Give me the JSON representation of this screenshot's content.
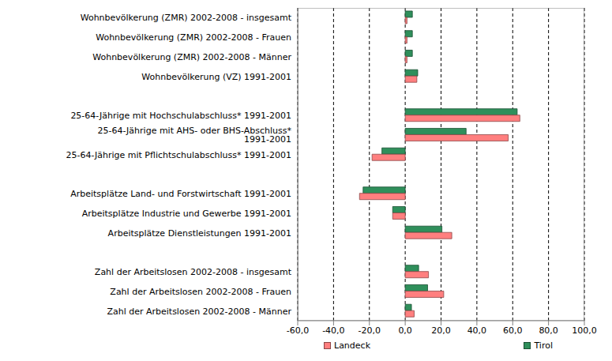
{
  "chart_data": {
    "type": "bar",
    "orientation": "horizontal",
    "categories": [
      "Wohnbevölkerung (ZMR) 2002-2008 - insgesamt",
      "Wohnbevölkerung (ZMR) 2002-2008 - Frauen",
      "Wohnbevölkerung (ZMR) 2002-2008 - Männer",
      "Wohnbevölkerung (VZ) 1991-2001",
      null,
      "25-64-Jährige mit Hochschulabschluss* 1991-2001",
      "25-64-Jährige mit AHS- oder BHS-Abschluss* 1991-2001",
      "25-64-Jährige mit Pflichtschulabschluss* 1991-2001",
      null,
      "Arbeitsplätze Land- und Forstwirtschaft 1991-2001",
      "Arbeitsplätze Industrie und Gewerbe 1991-2001",
      "Arbeitsplätze Dienstleistungen 1991-2001",
      null,
      "Zahl der Arbeitslosen 2002-2008 - insgesamt",
      "Zahl der Arbeitslosen 2002-2008 - Frauen",
      "Zahl der Arbeitslosen 2002-2008 - Männer"
    ],
    "series": [
      {
        "name": "Landeck",
        "color": "#ff7f7f",
        "values": [
          1,
          1,
          1,
          6.5,
          null,
          64,
          57.5,
          -18.5,
          null,
          -25.5,
          -7,
          26,
          null,
          13,
          21.5,
          5
        ]
      },
      {
        "name": "Tirol",
        "color": "#2f8f5b",
        "values": [
          4,
          4,
          4,
          7,
          null,
          62.5,
          34,
          -13,
          null,
          -23.5,
          -7,
          20.5,
          null,
          7.5,
          12.5,
          3.5
        ]
      }
    ],
    "xlim": [
      -60,
      100
    ],
    "xticks": [
      {
        "value": -60,
        "label": "-60,0"
      },
      {
        "value": -40,
        "label": "-40,0"
      },
      {
        "value": -20,
        "label": "-20,0"
      },
      {
        "value": 0,
        "label": "0,0"
      },
      {
        "value": 20,
        "label": "20,0"
      },
      {
        "value": 40,
        "label": "40,0"
      },
      {
        "value": 60,
        "label": "60,0"
      },
      {
        "value": 80,
        "label": "80,0"
      },
      {
        "value": 100,
        "label": "100,0"
      }
    ],
    "grid": true,
    "legend": "bottom"
  }
}
